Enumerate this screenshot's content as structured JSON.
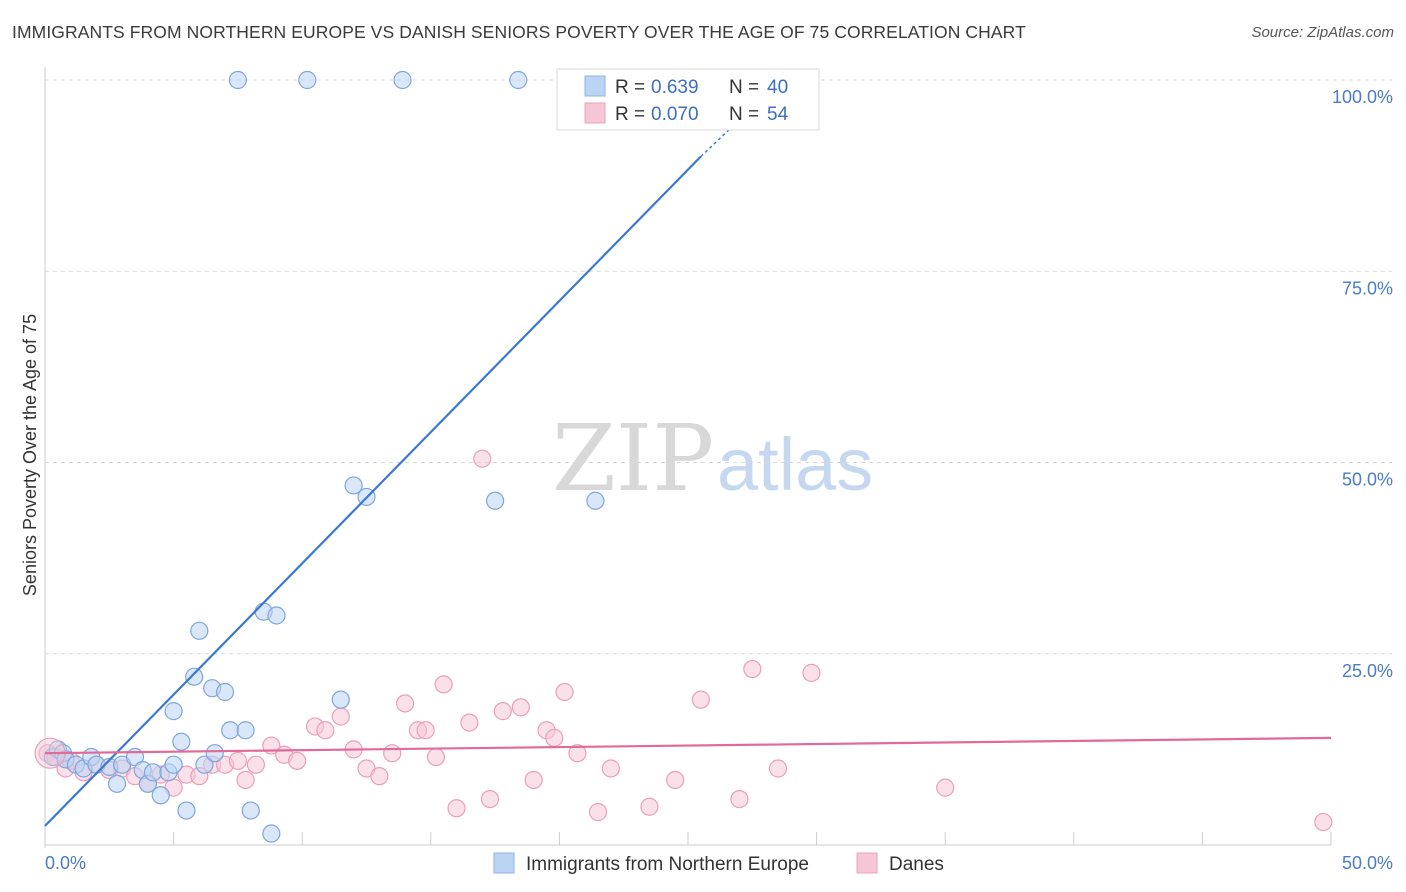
{
  "title": "IMMIGRANTS FROM NORTHERN EUROPE VS DANISH SENIORS POVERTY OVER THE AGE OF 75 CORRELATION CHART",
  "source": "Source: ZipAtlas.com",
  "watermark": {
    "zip": "ZIP",
    "atlas": "atlas"
  },
  "colors": {
    "blue": "#3a78d4",
    "blue_fill": "#bcd4f3",
    "pink": "#e06a98",
    "pink_fill": "#f6c6d6",
    "tick_text": "#4a7cc7",
    "grid": "#d9d9d9"
  },
  "legend": {
    "entries": [
      {
        "r_label": "R =",
        "r_value": "0.639",
        "n_label": "N =",
        "n_value": "40"
      },
      {
        "r_label": "R =",
        "r_value": "0.070",
        "n_label": "N =",
        "n_value": "54"
      }
    ]
  },
  "chart_data": {
    "type": "scatter",
    "xlabel": "",
    "ylabel": "Seniors Poverty Over the Age of 75",
    "xlim": [
      0,
      50
    ],
    "ylim": [
      0,
      100
    ],
    "x_tick_labels": [
      "0.0%",
      "50.0%"
    ],
    "y_ticks": [
      25,
      50,
      75,
      100
    ],
    "y_tick_labels": [
      "25.0%",
      "50.0%",
      "75.0%",
      "100.0%"
    ],
    "grid": true,
    "legend_position": "top-center",
    "series": [
      {
        "name": "Immigrants from Northern Europe",
        "color": "#3a78d4",
        "r": 0.639,
        "n": 40,
        "trend": {
          "x0": 0,
          "y0": 2.5,
          "x1": 25.5,
          "y1": 90
        },
        "trend_dashed_extension": {
          "x0": 25.5,
          "y0": 90,
          "x1": 26.6,
          "y1": 93.5
        },
        "points": [
          [
            0.3,
            11.5
          ],
          [
            0.5,
            12.5
          ],
          [
            0.7,
            12
          ],
          [
            0.8,
            11.2
          ],
          [
            1.2,
            10.5
          ],
          [
            1.5,
            10
          ],
          [
            1.8,
            11.5
          ],
          [
            2.0,
            10.5
          ],
          [
            2.5,
            10.2
          ],
          [
            2.8,
            8
          ],
          [
            3.0,
            10.5
          ],
          [
            3.5,
            11.5
          ],
          [
            3.8,
            9.8
          ],
          [
            4.0,
            8
          ],
          [
            4.2,
            9.5
          ],
          [
            4.5,
            6.5
          ],
          [
            4.8,
            9.5
          ],
          [
            5.0,
            17.5
          ],
          [
            5.0,
            10.5
          ],
          [
            5.3,
            13.5
          ],
          [
            5.5,
            4.5
          ],
          [
            5.8,
            22
          ],
          [
            6.0,
            28
          ],
          [
            6.2,
            10.5
          ],
          [
            6.5,
            20.5
          ],
          [
            6.6,
            12
          ],
          [
            7.0,
            20
          ],
          [
            7.2,
            15
          ],
          [
            7.5,
            100
          ],
          [
            7.8,
            15
          ],
          [
            8.0,
            4.5
          ],
          [
            8.5,
            30.5
          ],
          [
            8.8,
            1.5
          ],
          [
            9.0,
            30
          ],
          [
            10.2,
            100
          ],
          [
            11.5,
            19
          ],
          [
            12.0,
            47
          ],
          [
            12.5,
            45.5
          ],
          [
            13.9,
            100
          ],
          [
            17.5,
            45
          ],
          [
            18.4,
            100
          ],
          [
            21.4,
            45
          ]
        ]
      },
      {
        "name": "Danes",
        "color": "#e06a98",
        "r": 0.07,
        "n": 54,
        "trend": {
          "x0": 0,
          "y0": 12,
          "x1": 50,
          "y1": 14
        },
        "points": [
          [
            0.1,
            12
          ],
          [
            0.4,
            11.5
          ],
          [
            0.8,
            10
          ],
          [
            1.0,
            11
          ],
          [
            1.5,
            9.5
          ],
          [
            2.0,
            10.5
          ],
          [
            2.5,
            9.8
          ],
          [
            3.0,
            10
          ],
          [
            3.5,
            9
          ],
          [
            4.0,
            8
          ],
          [
            4.5,
            9.2
          ],
          [
            5.0,
            7.5
          ],
          [
            5.5,
            9.2
          ],
          [
            6.0,
            9
          ],
          [
            6.5,
            10.5
          ],
          [
            7.0,
            10.5
          ],
          [
            7.5,
            11
          ],
          [
            7.8,
            8.5
          ],
          [
            8.2,
            10.5
          ],
          [
            8.8,
            13
          ],
          [
            9.3,
            11.8
          ],
          [
            9.8,
            11
          ],
          [
            10.5,
            15.5
          ],
          [
            10.9,
            15
          ],
          [
            11.5,
            16.8
          ],
          [
            12.0,
            12.5
          ],
          [
            12.5,
            10
          ],
          [
            13.0,
            9
          ],
          [
            13.5,
            12
          ],
          [
            14.0,
            18.5
          ],
          [
            14.5,
            15
          ],
          [
            14.8,
            15
          ],
          [
            15.2,
            11.5
          ],
          [
            15.5,
            21
          ],
          [
            16.0,
            4.8
          ],
          [
            16.5,
            16
          ],
          [
            17.0,
            50.5
          ],
          [
            17.3,
            6
          ],
          [
            17.8,
            17.5
          ],
          [
            18.5,
            18
          ],
          [
            19.0,
            8.5
          ],
          [
            19.5,
            15
          ],
          [
            19.8,
            14
          ],
          [
            20.2,
            20
          ],
          [
            20.7,
            12
          ],
          [
            21.5,
            4.3
          ],
          [
            22.0,
            10
          ],
          [
            23.5,
            5
          ],
          [
            24.5,
            8.5
          ],
          [
            25.5,
            19
          ],
          [
            27.0,
            6
          ],
          [
            27.5,
            23
          ],
          [
            28.5,
            10
          ],
          [
            29.8,
            22.5
          ],
          [
            35.0,
            7.5
          ],
          [
            49.7,
            3
          ]
        ]
      }
    ]
  }
}
